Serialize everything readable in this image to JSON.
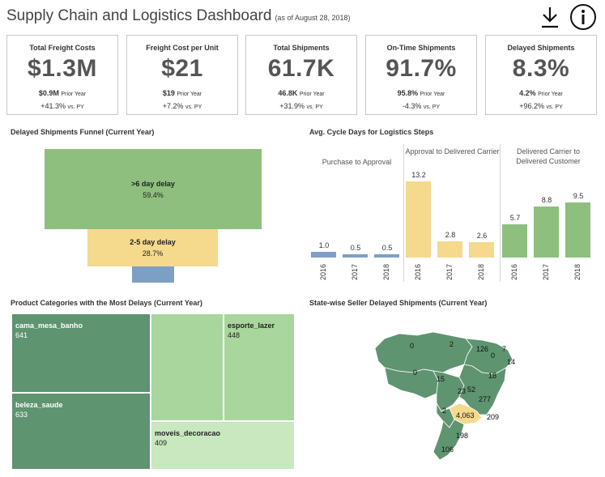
{
  "header": {
    "title": "Supply Chain and Logistics Dashboard",
    "subtitle": "(as of August 28, 2018)",
    "download_icon": "download-icon",
    "info_icon": "info-icon"
  },
  "kpis": [
    {
      "label": "Total Freight Costs",
      "value": "$1.3M",
      "prior_value": "$0.9M",
      "prior_label": "Prior Year",
      "change": "+41.3%",
      "change_label": "vs. PY"
    },
    {
      "label": "Freight Cost per Unit",
      "value": "$21",
      "prior_value": "$19",
      "prior_label": "Prior Year",
      "change": "+7.2%",
      "change_label": "vs. PY"
    },
    {
      "label": "Total Shipments",
      "value": "61.7K",
      "prior_value": "46.8K",
      "prior_label": "Prior Year",
      "change": "+31.9%",
      "change_label": "vs. PY"
    },
    {
      "label": "On-Time Shipments",
      "value": "91.7%",
      "prior_value": "95.8%",
      "prior_label": "Prior Year",
      "change": "-4.3%",
      "change_label": "vs. PY"
    },
    {
      "label": "Delayed Shipments",
      "value": "8.3%",
      "prior_value": "4.2%",
      "prior_label": "Prior Year",
      "change": "+96.2%",
      "change_label": "vs. PY"
    }
  ],
  "funnel": {
    "title": "Delayed Shipments Funnel (Current Year)",
    "stages": [
      {
        "label": ">6 day delay",
        "value": "59.4%",
        "color": "#8ebf7e"
      },
      {
        "label": "2-5 day delay",
        "value": "28.7%",
        "color": "#f5d98c"
      },
      {
        "label": "",
        "value": "",
        "color": "#7d9fc4"
      }
    ]
  },
  "cycle": {
    "title": "Avg. Cycle Days for Logistics Steps",
    "groups": [
      {
        "label": "Purchase to Approval",
        "color": "#7d9fc4",
        "bars": [
          {
            "year": "2016",
            "value": 1.0,
            "label": "1.0"
          },
          {
            "year": "2017",
            "value": 0.5,
            "label": "0.5"
          },
          {
            "year": "2018",
            "value": 0.5,
            "label": "0.5"
          }
        ]
      },
      {
        "label": "Approval to Delivered Carrier",
        "color": "#f5d98c",
        "bars": [
          {
            "year": "2016",
            "value": 13.2,
            "label": "13.2"
          },
          {
            "year": "2017",
            "value": 2.8,
            "label": "2.8"
          },
          {
            "year": "2018",
            "value": 2.6,
            "label": "2.6"
          }
        ]
      },
      {
        "label": "Delivered Carrier to Delivered Customer",
        "color": "#8ebf7e",
        "bars": [
          {
            "year": "2016",
            "value": 5.7,
            "label": "5.7"
          },
          {
            "year": "2017",
            "value": 8.8,
            "label": "8.8"
          },
          {
            "year": "2018",
            "value": 9.5,
            "label": "9.5"
          }
        ]
      }
    ]
  },
  "treemap": {
    "title": "Product Categories with the Most Delays (Current Year)",
    "cells": [
      {
        "label": "cama_mesa_banho",
        "value": "641"
      },
      {
        "label": "beleza_saude",
        "value": "633"
      },
      {
        "label": "",
        "value": ""
      },
      {
        "label": "esporte_lazer",
        "value": "448"
      },
      {
        "label": "moveis_decoracao",
        "value": "409"
      }
    ]
  },
  "map": {
    "title": "State-wise Seller Delayed Shipments (Current Year)",
    "labels": [
      "0",
      "2",
      "126",
      "7",
      "0",
      "14",
      "0",
      "15",
      "18",
      "23",
      "52",
      "277",
      "2",
      "4,063",
      "209",
      "198",
      "106"
    ]
  }
}
